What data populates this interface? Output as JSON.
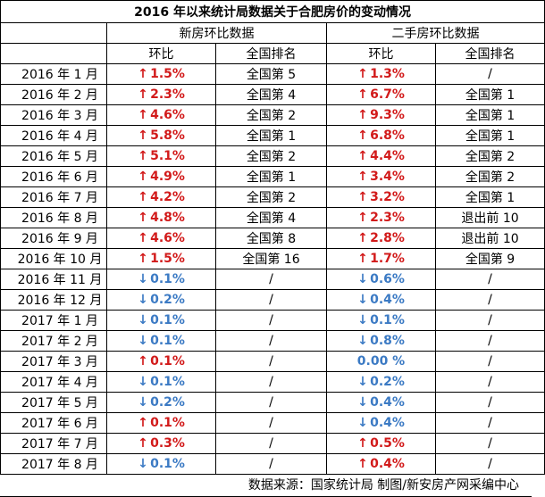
{
  "title": "2016 年以来统计局数据关于合肥房价的变动情况",
  "groups": {
    "new": "新房环比数据",
    "second": "二手房环比数据"
  },
  "columns": {
    "mom": "环比",
    "rank": "全国排名"
  },
  "rows": [
    {
      "month": "2016 年 1 月",
      "new_dir": "up",
      "new_mom": "1.5%",
      "new_rank": "全国第 5",
      "sec_dir": "up",
      "sec_mom": "1.3%",
      "sec_rank": "/"
    },
    {
      "month": "2016 年 2 月",
      "new_dir": "up",
      "new_mom": "2.3%",
      "new_rank": "全国第 4",
      "sec_dir": "up",
      "sec_mom": "6.7%",
      "sec_rank": "全国第 1"
    },
    {
      "month": "2016 年 3 月",
      "new_dir": "up",
      "new_mom": "4.6%",
      "new_rank": "全国第 2",
      "sec_dir": "up",
      "sec_mom": "9.3%",
      "sec_rank": "全国第 1"
    },
    {
      "month": "2016 年 4 月",
      "new_dir": "up",
      "new_mom": "5.8%",
      "new_rank": "全国第 1",
      "sec_dir": "up",
      "sec_mom": "6.8%",
      "sec_rank": "全国第 1"
    },
    {
      "month": "2016 年 5 月",
      "new_dir": "up",
      "new_mom": "5.1%",
      "new_rank": "全国第 2",
      "sec_dir": "up",
      "sec_mom": "4.4%",
      "sec_rank": "全国第 2"
    },
    {
      "month": "2016 年 6 月",
      "new_dir": "up",
      "new_mom": "4.9%",
      "new_rank": "全国第 1",
      "sec_dir": "up",
      "sec_mom": "3.4%",
      "sec_rank": "全国第 2"
    },
    {
      "month": "2016 年 7 月",
      "new_dir": "up",
      "new_mom": "4.2%",
      "new_rank": "全国第 2",
      "sec_dir": "up",
      "sec_mom": "3.2%",
      "sec_rank": "全国第 1"
    },
    {
      "month": "2016 年 8 月",
      "new_dir": "up",
      "new_mom": "4.8%",
      "new_rank": "全国第 4",
      "sec_dir": "up",
      "sec_mom": "2.3%",
      "sec_rank": "退出前 10"
    },
    {
      "month": "2016 年 9 月",
      "new_dir": "up",
      "new_mom": "4.6%",
      "new_rank": "全国第 8",
      "sec_dir": "up",
      "sec_mom": "2.8%",
      "sec_rank": "退出前 10"
    },
    {
      "month": "2016 年 10 月",
      "new_dir": "up",
      "new_mom": "1.5%",
      "new_rank": "全国第 16",
      "sec_dir": "up",
      "sec_mom": "1.7%",
      "sec_rank": "全国第 9"
    },
    {
      "month": "2016 年 11 月",
      "new_dir": "down",
      "new_mom": "0.1%",
      "new_rank": "/",
      "sec_dir": "down",
      "sec_mom": "0.6%",
      "sec_rank": "/"
    },
    {
      "month": "2016 年 12 月",
      "new_dir": "down",
      "new_mom": "0.2%",
      "new_rank": "/",
      "sec_dir": "down",
      "sec_mom": "0.4%",
      "sec_rank": "/"
    },
    {
      "month": "2017 年 1 月",
      "new_dir": "down",
      "new_mom": "0.1%",
      "new_rank": "/",
      "sec_dir": "down",
      "sec_mom": "0.1%",
      "sec_rank": "/"
    },
    {
      "month": "2017 年 2 月",
      "new_dir": "down",
      "new_mom": "0.1%",
      "new_rank": "/",
      "sec_dir": "down",
      "sec_mom": "0.8%",
      "sec_rank": "/"
    },
    {
      "month": "2017 年 3 月",
      "new_dir": "up",
      "new_mom": "0.1%",
      "new_rank": "/",
      "sec_dir": "flat",
      "sec_mom": "0.00 %",
      "sec_rank": "/"
    },
    {
      "month": "2017 年 4 月",
      "new_dir": "down",
      "new_mom": "0.1%",
      "new_rank": "/",
      "sec_dir": "down",
      "sec_mom": "0.2%",
      "sec_rank": "/"
    },
    {
      "month": "2017 年 5 月",
      "new_dir": "down",
      "new_mom": "0.2%",
      "new_rank": "/",
      "sec_dir": "down",
      "sec_mom": "0.4%",
      "sec_rank": "/"
    },
    {
      "month": "2017 年 6 月",
      "new_dir": "up",
      "new_mom": "0.1%",
      "new_rank": "/",
      "sec_dir": "down",
      "sec_mom": "0.4%",
      "sec_rank": "/"
    },
    {
      "month": "2017 年 7 月",
      "new_dir": "up",
      "new_mom": "0.3%",
      "new_rank": "/",
      "sec_dir": "up",
      "sec_mom": "0.5%",
      "sec_rank": "/"
    },
    {
      "month": "2017 年 8 月",
      "new_dir": "down",
      "new_mom": "0.1%",
      "new_rank": "/",
      "sec_dir": "up",
      "sec_mom": "0.4%",
      "sec_rank": "/"
    }
  ],
  "footer": "数据来源：国家统计局  制图/新安房产网采编中心",
  "colors": {
    "up": "#d21a1a",
    "down": "#3b7ac4"
  }
}
